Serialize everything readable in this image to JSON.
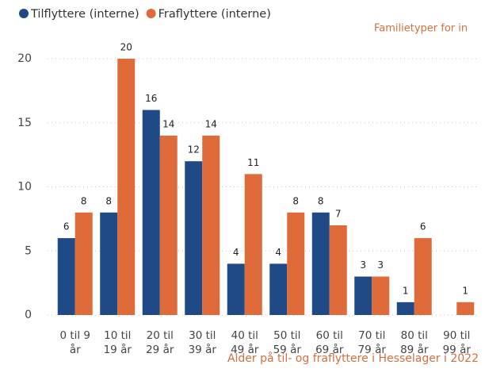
{
  "chart_data": {
    "type": "bar",
    "annotations": [
      "Familietyper for in"
    ],
    "caption": "Alder på til- og fraflyttere i Hesselager i 2022",
    "categories": [
      [
        "0 til 9",
        "år"
      ],
      [
        "10 til",
        "19 år"
      ],
      [
        "20 til",
        "29 år"
      ],
      [
        "30 til",
        "39 år"
      ],
      [
        "40 til",
        "49 år"
      ],
      [
        "50 til",
        "59 år"
      ],
      [
        "60 til",
        "69 år"
      ],
      [
        "70 til",
        "79 år"
      ],
      [
        "80 til",
        "89 år"
      ],
      [
        "90 til",
        "99 år"
      ]
    ],
    "series": [
      {
        "name": "Tilflyttere (interne)",
        "color": "#1f4a86",
        "values": [
          6,
          8,
          16,
          12,
          4,
          4,
          8,
          3,
          1,
          null
        ]
      },
      {
        "name": "Fraflyttere (interne)",
        "color": "#e06b3a",
        "values": [
          8,
          20,
          14,
          14,
          11,
          8,
          7,
          3,
          6,
          1
        ]
      }
    ],
    "ylim": [
      0,
      20
    ],
    "yticks": [
      0,
      5,
      10,
      15,
      20
    ],
    "grid": true,
    "legend": "top-left"
  }
}
